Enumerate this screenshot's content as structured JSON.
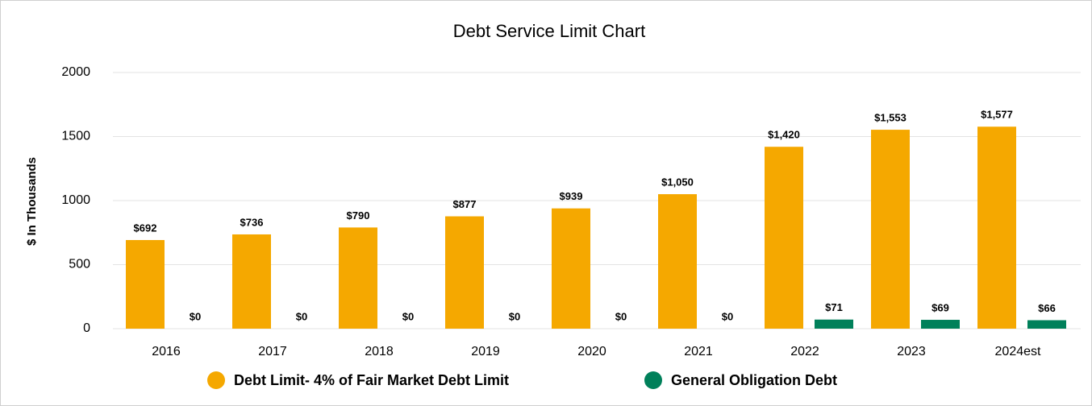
{
  "chart_data": {
    "type": "bar",
    "title": "Debt Service Limit Chart",
    "y_label": "$ In Thousands",
    "categories": [
      "2016",
      "2017",
      "2018",
      "2019",
      "2020",
      "2021",
      "2022",
      "2023",
      "2024est"
    ],
    "series": [
      {
        "name": "Debt Limit- 4% of Fair Market Debt Limit",
        "color": "#f5a800",
        "values": [
          692,
          736,
          790,
          877,
          939,
          1050,
          1420,
          1553,
          1577
        ],
        "value_labels": [
          "$692",
          "$736",
          "$790",
          "$877",
          "$939",
          "$1,050",
          "$1,420",
          "$1,553",
          "$1,577"
        ]
      },
      {
        "name": "General Obligation Debt",
        "color": "#00805a",
        "values": [
          0,
          0,
          0,
          0,
          0,
          0,
          71,
          69,
          66
        ],
        "value_labels": [
          "$0",
          "$0",
          "$0",
          "$0",
          "$0",
          "$0",
          "$71",
          "$69",
          "$66"
        ]
      }
    ],
    "ylim": [
      0,
      2000
    ],
    "yticks": [
      0,
      500,
      1000,
      1500,
      2000
    ],
    "grid": true,
    "legend": "bottom"
  }
}
